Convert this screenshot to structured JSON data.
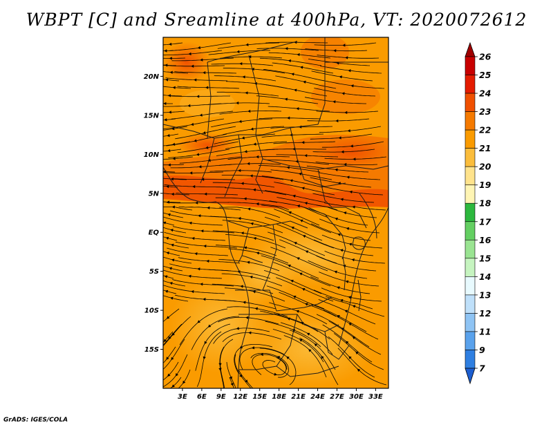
{
  "title": "WBPT [C] and Sreamline at 400hPa, VT: 2020072612",
  "credit": "GrADS: IGES/COLA",
  "map": {
    "lon_range": [
      0,
      35
    ],
    "lat_range": [
      -20,
      25
    ],
    "lat_ticks": [
      {
        "v": 20,
        "label": "20N"
      },
      {
        "v": 15,
        "label": "15N"
      },
      {
        "v": 10,
        "label": "10N"
      },
      {
        "v": 5,
        "label": "5N"
      },
      {
        "v": 0,
        "label": "EQ"
      },
      {
        "v": -5,
        "label": "5S"
      },
      {
        "v": -10,
        "label": "10S"
      },
      {
        "v": -15,
        "label": "15S"
      }
    ],
    "lon_ticks": [
      {
        "v": 3,
        "label": "3E"
      },
      {
        "v": 6,
        "label": "6E"
      },
      {
        "v": 9,
        "label": "9E"
      },
      {
        "v": 12,
        "label": "12E"
      },
      {
        "v": 15,
        "label": "15E"
      },
      {
        "v": 18,
        "label": "18E"
      },
      {
        "v": 21,
        "label": "21E"
      },
      {
        "v": 24,
        "label": "24E"
      },
      {
        "v": 27,
        "label": "27E"
      },
      {
        "v": 30,
        "label": "30E"
      },
      {
        "v": 33,
        "label": "33E"
      }
    ]
  },
  "colorbar": {
    "labels": [
      "26",
      "25",
      "24",
      "23",
      "22",
      "21",
      "20",
      "19",
      "18",
      "17",
      "16",
      "15",
      "14",
      "13",
      "12",
      "11",
      "9",
      "7"
    ],
    "colors": [
      "#a00000",
      "#c80000",
      "#e41c00",
      "#f05000",
      "#f57a00",
      "#fa9b00",
      "#fbbd3c",
      "#ffe38c",
      "#fff5b4",
      "#2db83e",
      "#64cf62",
      "#9ae492",
      "#c6f4c0",
      "#e8fafe",
      "#bfe0fa",
      "#8fc4f4",
      "#5aa2ec",
      "#2f7fe1",
      "#1c5ed0"
    ]
  }
}
